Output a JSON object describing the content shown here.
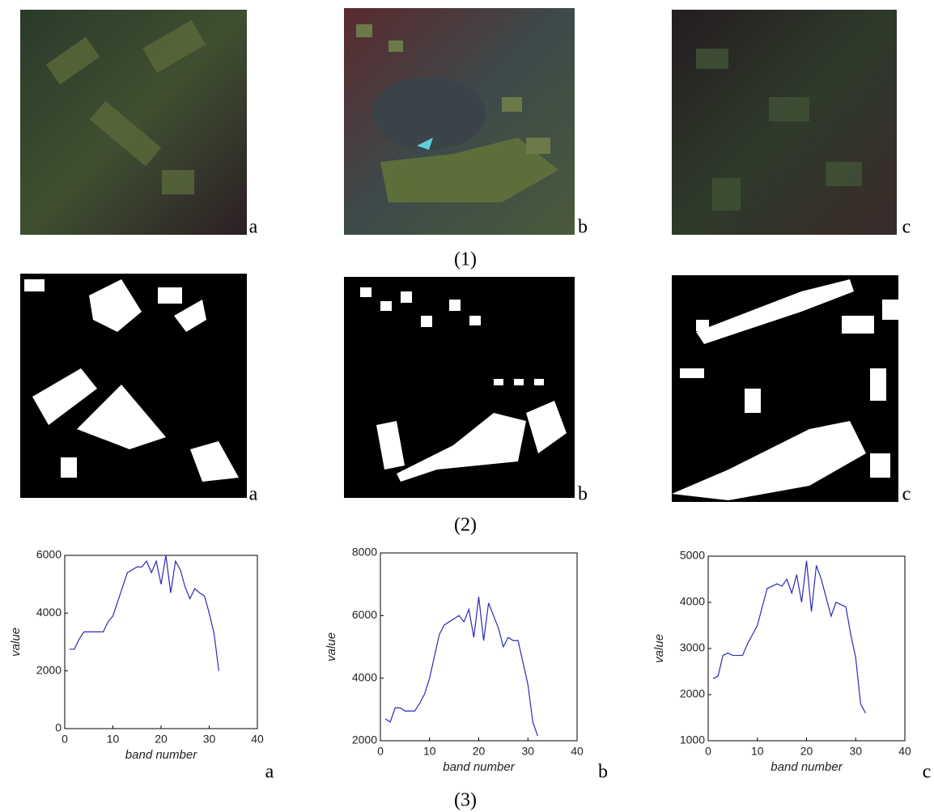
{
  "figure": {
    "rows": [
      {
        "label": "(1)",
        "panels": [
          "a",
          "b",
          "c"
        ]
      },
      {
        "label": "(2)",
        "panels": [
          "a",
          "b",
          "c"
        ]
      },
      {
        "label": "(3)",
        "panels": [
          "a",
          "b",
          "c"
        ]
      }
    ]
  },
  "chart_data": [
    {
      "type": "line",
      "x_label": "band number",
      "y_label": "value",
      "xlim": [
        0,
        40
      ],
      "xticks": [
        0,
        10,
        20,
        30,
        40
      ],
      "ylim": [
        0,
        6000
      ],
      "yticks": [
        0,
        2000,
        4000,
        6000
      ],
      "series": [
        {
          "color": "#2b2bb8",
          "x": [
            1,
            2,
            3,
            4,
            5,
            6,
            7,
            8,
            9,
            10,
            11,
            12,
            13,
            14,
            15,
            16,
            17,
            18,
            19,
            20,
            21,
            22,
            23,
            24,
            25,
            26,
            27,
            28,
            29,
            30,
            31,
            32
          ],
          "values": [
            2750,
            2750,
            3100,
            3350,
            3350,
            3350,
            3350,
            3350,
            3700,
            3900,
            4400,
            4900,
            5400,
            5500,
            5600,
            5600,
            5800,
            5400,
            5800,
            5000,
            6000,
            4700,
            5800,
            5500,
            4900,
            4500,
            4850,
            4700,
            4600,
            4000,
            3300,
            2000
          ]
        }
      ]
    },
    {
      "type": "line",
      "x_label": "band number",
      "y_label": "value",
      "xlim": [
        0,
        40
      ],
      "xticks": [
        0,
        10,
        20,
        30,
        40
      ],
      "ylim": [
        2000,
        8000
      ],
      "yticks": [
        2000,
        4000,
        6000,
        8000
      ],
      "series": [
        {
          "color": "#2b2bb8",
          "x": [
            1,
            2,
            3,
            4,
            5,
            6,
            7,
            8,
            9,
            10,
            11,
            12,
            13,
            14,
            15,
            16,
            17,
            18,
            19,
            20,
            21,
            22,
            23,
            24,
            25,
            26,
            27,
            28,
            29,
            30,
            31,
            32
          ],
          "values": [
            2700,
            2600,
            3050,
            3050,
            2950,
            2950,
            2950,
            3200,
            3500,
            4000,
            4700,
            5400,
            5700,
            5800,
            5900,
            6000,
            5800,
            6200,
            5300,
            6600,
            5200,
            6400,
            6000,
            5600,
            5000,
            5300,
            5200,
            5200,
            4500,
            3800,
            2600,
            2150
          ]
        }
      ]
    },
    {
      "type": "line",
      "x_label": "band number",
      "y_label": "value",
      "xlim": [
        0,
        40
      ],
      "xticks": [
        0,
        10,
        20,
        30,
        40
      ],
      "ylim": [
        1000,
        5000
      ],
      "yticks": [
        1000,
        2000,
        3000,
        4000,
        5000
      ],
      "series": [
        {
          "color": "#2b2bb8",
          "x": [
            1,
            2,
            3,
            4,
            5,
            6,
            7,
            8,
            9,
            10,
            11,
            12,
            13,
            14,
            15,
            16,
            17,
            18,
            19,
            20,
            21,
            22,
            23,
            24,
            25,
            26,
            27,
            28,
            29,
            30,
            31,
            32
          ],
          "values": [
            2350,
            2400,
            2850,
            2900,
            2850,
            2850,
            2850,
            3100,
            3300,
            3500,
            3900,
            4300,
            4350,
            4400,
            4350,
            4500,
            4200,
            4600,
            4000,
            4900,
            3800,
            4800,
            4500,
            4100,
            3700,
            4000,
            3950,
            3900,
            3300,
            2800,
            1800,
            1600
          ]
        }
      ]
    }
  ]
}
